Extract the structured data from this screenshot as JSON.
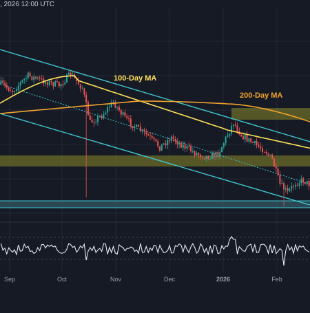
{
  "header": {
    "datetime_fragment": ", 2026 12:00 UTC"
  },
  "colors": {
    "background": "#161a25",
    "grid": "#232837",
    "bull": "#26a69a",
    "bear": "#ef5350",
    "ma100": "#ffe15a",
    "ma200": "#f2a32c",
    "channel": "#3fc7cf",
    "trendline": "#3fc7cf",
    "zone_fill": "#8d8a2a",
    "support_fill": "#3d6d7a",
    "rsi_line": "#e8eaf0",
    "axis_text": "#9aa0ad"
  },
  "chart_data": {
    "type": "candlestick",
    "x_axis": {
      "tick_labels": [
        "Sep",
        "Oct",
        "Nov",
        "Dec",
        "2026",
        "Feb"
      ]
    },
    "annotations": [
      {
        "label": "100-Day MA",
        "series": "ma100"
      },
      {
        "label": "200-Day MA",
        "series": "ma200"
      }
    ],
    "grid": true,
    "zones": [
      {
        "kind": "resistance",
        "from_bar": 110,
        "to_bar": 159
      },
      {
        "kind": "resistance",
        "from_bar": 0,
        "to_bar": 159
      },
      {
        "kind": "support",
        "from_bar": 0,
        "to_bar": 159
      }
    ],
    "candles_per_label_month": 30,
    "candle_count": 160,
    "ma100_visible": true,
    "ma200_visible": true,
    "channel": "descending",
    "rsi_panel": true
  }
}
